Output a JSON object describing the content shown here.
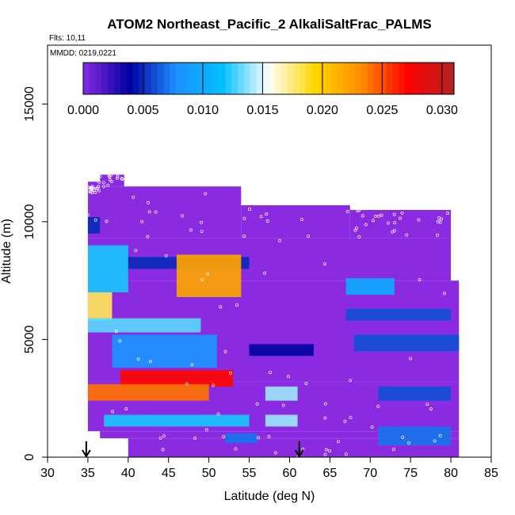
{
  "chart_data": {
    "type": "heatmap",
    "title": "ATOM2 Northeast_Pacific_2 AlkaliSaltFrac_PALMS",
    "annotations": {
      "flights": "Flts: 10,11",
      "dates": "MMDD: 0219,0221"
    },
    "xlabel": "Latitude (deg N)",
    "ylabel": "Altitude (m)",
    "xlim": [
      30,
      85
    ],
    "ylim": [
      0,
      17500
    ],
    "x_ticks": [
      "30",
      "35",
      "40",
      "45",
      "50",
      "55",
      "60",
      "65",
      "70",
      "75",
      "80",
      "85"
    ],
    "y_ticks": [
      "0",
      "5000",
      "10000",
      "15000"
    ],
    "colorbar": {
      "range": [
        0,
        0.031
      ],
      "tick_labels": [
        "0.000",
        "0.005",
        "0.010",
        "0.015",
        "0.020",
        "0.025",
        "0.030"
      ],
      "colors": [
        "#8a2be2",
        "#0000a0",
        "#1e90ff",
        "#00bfff",
        "#ffffff",
        "#ffd700",
        "#ff8c00",
        "#ff0000",
        "#b22222"
      ]
    },
    "background_value": 0.0,
    "flight_markers_lat": [
      34.8,
      61.2
    ],
    "coverage": [
      {
        "lat": [
          35,
          36.5
        ],
        "alt": [
          11200,
          11700
        ]
      },
      {
        "lat": [
          36.5,
          39.5
        ],
        "alt": [
          11500,
          12000
        ]
      },
      {
        "lat": [
          35,
          54
        ],
        "alt": [
          9300,
          11500
        ]
      },
      {
        "lat": [
          54,
          67.5
        ],
        "alt": [
          9300,
          10700
        ]
      },
      {
        "lat": [
          67.5,
          80
        ],
        "alt": [
          9300,
          10500
        ]
      },
      {
        "lat": [
          35,
          80
        ],
        "alt": [
          7500,
          9300
        ]
      },
      {
        "lat": [
          35,
          81
        ],
        "alt": [
          3200,
          7500
        ]
      },
      {
        "lat": [
          35,
          81
        ],
        "alt": [
          1100,
          3200
        ]
      },
      {
        "lat": [
          36.5,
          81
        ],
        "alt": [
          800,
          1100
        ]
      },
      {
        "lat": [
          40,
          81
        ],
        "alt": [
          0,
          800
        ]
      }
    ],
    "features": [
      {
        "lat": [
          35,
          36.5
        ],
        "alt": [
          9500,
          10200
        ],
        "value": 0.005
      },
      {
        "lat": [
          35,
          40
        ],
        "alt": [
          7000,
          9000
        ],
        "value": 0.012
      },
      {
        "lat": [
          35,
          38
        ],
        "alt": [
          5800,
          7000
        ],
        "value": 0.018
      },
      {
        "lat": [
          40,
          55
        ],
        "alt": [
          8000,
          8500
        ],
        "value": 0.005
      },
      {
        "lat": [
          46,
          54
        ],
        "alt": [
          6800,
          8600
        ],
        "value": 0.022
      },
      {
        "lat": [
          35,
          49
        ],
        "alt": [
          5300,
          5900
        ],
        "value": 0.013
      },
      {
        "lat": [
          38,
          51
        ],
        "alt": [
          3800,
          5200
        ],
        "value": 0.008
      },
      {
        "lat": [
          39,
          53
        ],
        "alt": [
          3000,
          3700
        ],
        "value": 0.027
      },
      {
        "lat": [
          35,
          50
        ],
        "alt": [
          2400,
          3100
        ],
        "value": 0.024
      },
      {
        "lat": [
          37,
          55
        ],
        "alt": [
          1300,
          1800
        ],
        "value": 0.012
      },
      {
        "lat": [
          57,
          61
        ],
        "alt": [
          2400,
          3000
        ],
        "value": 0.014
      },
      {
        "lat": [
          57,
          61
        ],
        "alt": [
          1300,
          1800
        ],
        "value": 0.014
      },
      {
        "lat": [
          52,
          56
        ],
        "alt": [
          600,
          1000
        ],
        "value": 0.007
      },
      {
        "lat": [
          67,
          73
        ],
        "alt": [
          6900,
          7600
        ],
        "value": 0.01
      },
      {
        "lat": [
          67,
          80
        ],
        "alt": [
          5800,
          6300
        ],
        "value": 0.006
      },
      {
        "lat": [
          68,
          81
        ],
        "alt": [
          4500,
          5200
        ],
        "value": 0.006
      },
      {
        "lat": [
          71,
          80
        ],
        "alt": [
          2400,
          3000
        ],
        "value": 0.006
      },
      {
        "lat": [
          71,
          80
        ],
        "alt": [
          500,
          1300
        ],
        "value": 0.007
      },
      {
        "lat": [
          55,
          63
        ],
        "alt": [
          4300,
          4800
        ],
        "value": 0.004
      }
    ]
  }
}
